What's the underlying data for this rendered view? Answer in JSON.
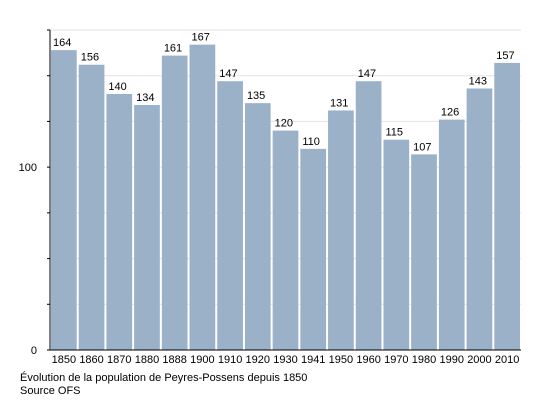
{
  "chart_data": {
    "type": "bar",
    "categories": [
      "1850",
      "1860",
      "1870",
      "1880",
      "1888",
      "1900",
      "1910",
      "1920",
      "1930",
      "1941",
      "1950",
      "1960",
      "1970",
      "1980",
      "1990",
      "2000",
      "2010"
    ],
    "values": [
      164,
      156,
      140,
      134,
      161,
      167,
      147,
      135,
      120,
      110,
      131,
      147,
      115,
      107,
      126,
      143,
      157
    ],
    "title": "",
    "xlabel": "",
    "ylabel": "",
    "ylim": [
      0,
      175
    ],
    "yticks_labeled": [
      0,
      100
    ],
    "yticks_minor_step": 25,
    "grid": true,
    "legend": "none",
    "bar_color": "#9bb1c8"
  },
  "caption": {
    "line1": "Évolution de la population de Peyres-Possens depuis 1850",
    "line2": "Source OFS"
  }
}
